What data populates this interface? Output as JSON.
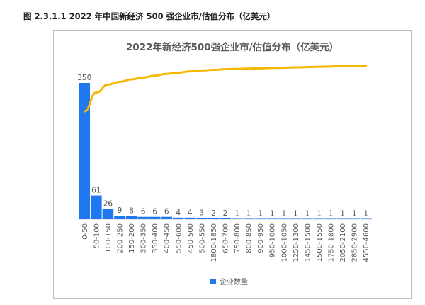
{
  "caption": "图 2.3.1.1 2022 年中国新经济 500 强企业市/估值分布（亿美元）",
  "colors": {
    "bar": "#1f78f0",
    "line": "#f5b800",
    "axis": "#d0d0d0",
    "text": "#555555"
  },
  "chart_data": {
    "type": "bar",
    "title": "2022年新经济500强企业市/估值分布（亿美元）",
    "xlabel": "",
    "ylabel": "",
    "ylim": [
      0,
      350
    ],
    "categories": [
      "0-50",
      "50-100",
      "100-150",
      "200-250",
      "150-200",
      "300-350",
      "350-400",
      "400-450",
      "550-600",
      "450-500",
      "500-550",
      "1800-1850",
      "650-700",
      "750-800",
      "800-850",
      "900-950",
      "950-1000",
      "1000-1050",
      "1250-1300",
      "1450-1500",
      "1500-1550",
      "1750-1800",
      "2050-2100",
      "2850-2900",
      "4550-4600"
    ],
    "series": [
      {
        "name": "企业数量",
        "values": [
          350,
          61,
          26,
          9,
          8,
          6,
          6,
          6,
          4,
          4,
          3,
          2,
          2,
          1,
          1,
          1,
          1,
          1,
          1,
          1,
          1,
          1,
          1,
          1,
          1
        ]
      }
    ],
    "cumulative_line": {
      "values": [
        0.7,
        0.822,
        0.874,
        0.892,
        0.908,
        0.92,
        0.932,
        0.944,
        0.952,
        0.96,
        0.966,
        0.97,
        0.974,
        0.976,
        0.978,
        0.98,
        0.982,
        0.984,
        0.986,
        0.988,
        0.99,
        0.992,
        0.994,
        0.996,
        0.998
      ]
    },
    "legend": {
      "placement": "bottom",
      "label": "企业数量"
    }
  }
}
